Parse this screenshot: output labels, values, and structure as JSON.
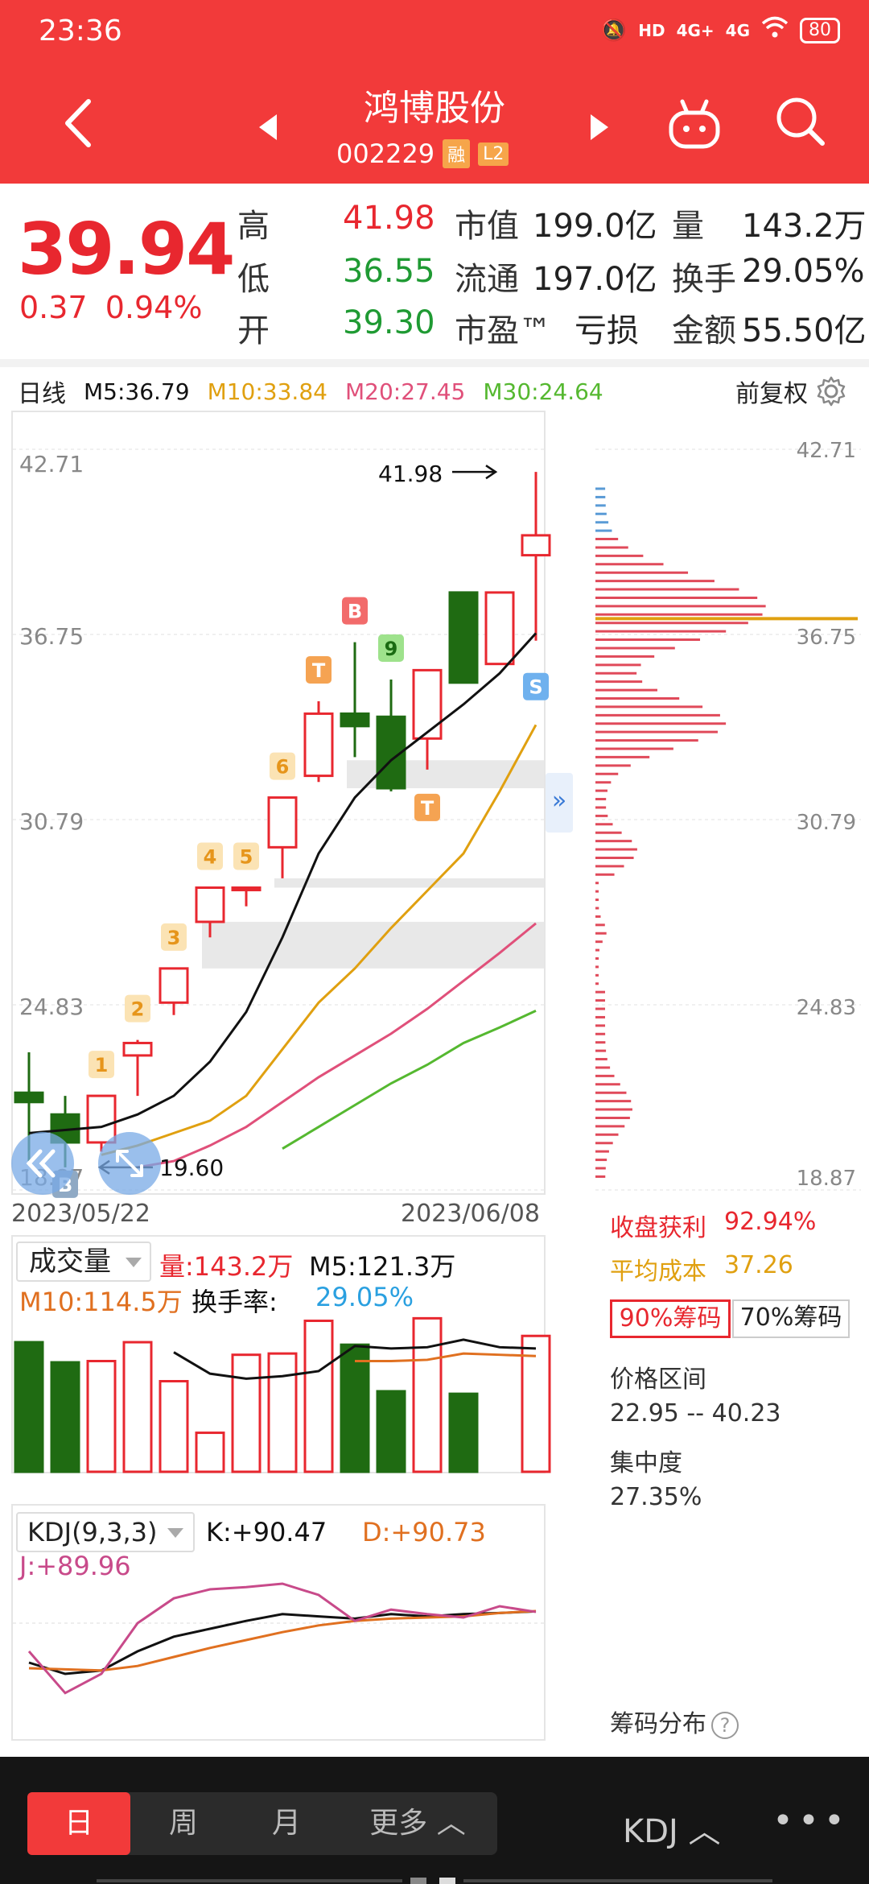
{
  "status_bar": {
    "time": "23:36",
    "battery": "80",
    "net1": "HD",
    "net2": "4G+",
    "net3": "4G"
  },
  "header": {
    "name": "鸿博股份",
    "code": "002229",
    "badge_margin": "融",
    "badge_level": "L2"
  },
  "quote": {
    "price": "39.94",
    "change": "0.37",
    "change_pct": "0.94%",
    "high_label": "高",
    "high": "41.98",
    "low_label": "低",
    "low": "36.55",
    "open_label": "开",
    "open": "39.30",
    "mktcap_label": "市值",
    "mktcap": "199.0亿",
    "float_label": "流通",
    "float": "197.0亿",
    "pe_label": "市盈™",
    "pe": "亏损",
    "vol_label": "量",
    "vol": "143.2万",
    "turnover_label": "换手",
    "turnover": "29.05%",
    "amount_label": "金额",
    "amount": "55.50亿"
  },
  "ma_legend": {
    "period": "日线",
    "m5": "M5:36.79",
    "m10": "M10:33.84",
    "m20": "M20:27.45",
    "m30": "M30:24.64",
    "adjust": "前复权"
  },
  "colors": {
    "up": "#e8272f",
    "down": "#1f6b12",
    "m5": "#111111",
    "m10": "#e0a010",
    "m20": "#e0507a",
    "m30": "#55b830",
    "header": "#f23a3a"
  },
  "chart_data": [
    {
      "type": "candlestick",
      "title": "日线",
      "ylim": [
        18.87,
        42.71
      ],
      "y_ticks": [
        "42.71",
        "36.75",
        "30.79",
        "24.83",
        "18.87"
      ],
      "x_range_labels": [
        "2023/05/22",
        "2023/06/08"
      ],
      "max_label": "41.98",
      "min_label": "19.60",
      "candles": [
        {
          "o": 22.0,
          "h": 23.3,
          "l": 19.8,
          "c": 21.7
        },
        {
          "o": 21.3,
          "h": 21.9,
          "l": 19.6,
          "c": 20.4
        },
        {
          "o": 20.4,
          "h": 21.9,
          "l": 20.1,
          "c": 21.9
        },
        {
          "o": 23.2,
          "h": 23.7,
          "l": 21.9,
          "c": 23.6
        },
        {
          "o": 24.9,
          "h": 26.0,
          "l": 24.5,
          "c": 26.0
        },
        {
          "o": 27.5,
          "h": 28.6,
          "l": 27.0,
          "c": 28.6
        },
        {
          "o": 28.6,
          "h": 28.6,
          "l": 28.0,
          "c": 28.6
        },
        {
          "o": 29.9,
          "h": 31.5,
          "l": 28.9,
          "c": 31.5
        },
        {
          "o": 32.2,
          "h": 34.6,
          "l": 32.0,
          "c": 34.2
        },
        {
          "o": 34.2,
          "h": 36.5,
          "l": 32.8,
          "c": 33.8
        },
        {
          "o": 34.1,
          "h": 35.3,
          "l": 31.7,
          "c": 31.8
        },
        {
          "o": 33.4,
          "h": 35.6,
          "l": 32.4,
          "c": 35.6
        },
        {
          "o": 38.1,
          "h": 38.1,
          "l": 35.2,
          "c": 35.2
        },
        {
          "o": 35.8,
          "h": 38.1,
          "l": 35.8,
          "c": 38.1
        },
        {
          "o": 39.3,
          "h": 41.98,
          "l": 36.55,
          "c": 39.94
        }
      ],
      "signals": [
        "",
        "B",
        "1",
        "2",
        "3",
        "4",
        "5",
        "6",
        "T",
        "B",
        "9",
        "T",
        "",
        "",
        "S"
      ],
      "ma_series": [
        {
          "name": "M5",
          "values": [
            20.7,
            20.8,
            20.9,
            21.3,
            21.9,
            23.0,
            24.6,
            27.0,
            29.7,
            31.5,
            32.7,
            33.6,
            34.5,
            35.5,
            36.79
          ]
        },
        {
          "name": "M10",
          "values": [
            null,
            null,
            20.0,
            20.3,
            20.7,
            21.1,
            21.9,
            23.4,
            24.9,
            26.0,
            27.3,
            28.5,
            29.7,
            31.7,
            33.84
          ]
        },
        {
          "name": "M20",
          "values": [
            null,
            null,
            null,
            19.6,
            19.8,
            20.3,
            20.9,
            21.7,
            22.5,
            23.2,
            23.9,
            24.7,
            25.6,
            26.5,
            27.45
          ]
        },
        {
          "name": "M30",
          "values": [
            null,
            null,
            null,
            null,
            null,
            null,
            null,
            20.2,
            20.9,
            21.6,
            22.3,
            22.9,
            23.6,
            24.1,
            24.64
          ]
        }
      ]
    },
    {
      "type": "bar",
      "title": "成交量",
      "series": [
        {
          "name": "量",
          "values": [
            103,
            87,
            88,
            103,
            72,
            31,
            93,
            94,
            120,
            101,
            64,
            122,
            62,
            0,
            108
          ]
        }
      ],
      "ma_series": [
        {
          "name": "M5",
          "values": [
            null,
            null,
            null,
            null,
            95,
            78,
            74,
            76,
            80,
            100,
            98,
            99,
            105,
            99,
            98
          ]
        },
        {
          "name": "M10",
          "values": [
            null,
            null,
            null,
            null,
            null,
            null,
            null,
            null,
            null,
            88,
            88,
            89,
            94,
            93,
            92
          ]
        }
      ]
    },
    {
      "type": "line",
      "title": "KDJ(9,3,3)",
      "ylim": [
        -20,
        110
      ],
      "series": [
        {
          "name": "K",
          "values": [
            45,
            35,
            38,
            55,
            68,
            75,
            82,
            88,
            86,
            84,
            88,
            86,
            88,
            89,
            90.47
          ]
        },
        {
          "name": "D",
          "values": [
            40,
            39,
            38,
            42,
            50,
            58,
            65,
            72,
            78,
            82,
            84,
            85,
            86,
            89,
            90.73
          ]
        },
        {
          "name": "J",
          "values": [
            55,
            18,
            35,
            80,
            102,
            110,
            112,
            115,
            105,
            82,
            92,
            88,
            85,
            95,
            89.96
          ]
        }
      ]
    }
  ],
  "volume_legend": {
    "select": "成交量",
    "vol": "量:143.2万",
    "m5": "M5:121.3万",
    "m10": "M10:114.5万",
    "turnover_label": "换手率:",
    "turnover": "29.05%"
  },
  "kdj_legend": {
    "select": "KDJ(9,3,3)",
    "k": "K:+90.47",
    "d": "D:+90.73",
    "j": "J:+89.96"
  },
  "chip_panel": {
    "profit_label": "收盘获利",
    "profit": "92.94%",
    "cost_label": "平均成本",
    "cost": "37.26",
    "tab90": "90%筹码",
    "tab70": "70%筹码",
    "range_label": "价格区间",
    "range": "22.95 -- 40.23",
    "conc_label": "集中度",
    "conc": "27.35%",
    "footer": "筹码分布",
    "y_ticks": [
      "42.71",
      "36.75",
      "30.79",
      "24.83",
      "18.87"
    ]
  },
  "bottom_bar": {
    "day": "日",
    "week": "周",
    "month": "月",
    "more": "更多 ︿",
    "indicator": "KDJ ︿",
    "menu": "•••"
  }
}
